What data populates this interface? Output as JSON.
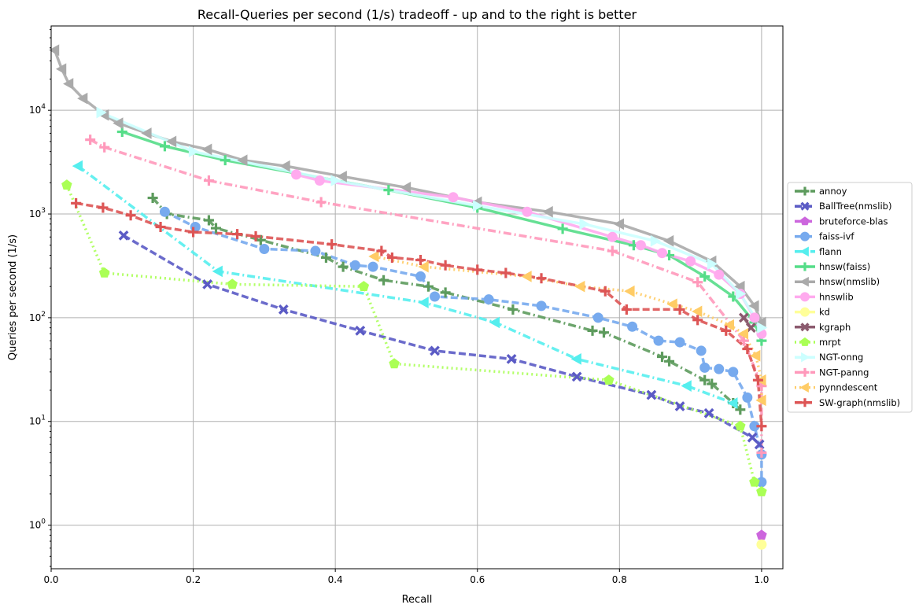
{
  "chart_data": {
    "type": "line",
    "title": "Recall-Queries per second (1/s) tradeoff - up and to the right is better",
    "xlabel": "Recall",
    "ylabel": "Queries per second (1/s)",
    "xlim": [
      0,
      1.03
    ],
    "ylim": [
      0.38,
      65000
    ],
    "x_scale": "linear",
    "y_scale": "log",
    "grid": true,
    "legend_position": "right-outside",
    "x_ticks": [
      {
        "value": 0.0,
        "label": "0.0"
      },
      {
        "value": 0.2,
        "label": "0.2"
      },
      {
        "value": 0.4,
        "label": "0.4"
      },
      {
        "value": 0.6,
        "label": "0.6"
      },
      {
        "value": 0.8,
        "label": "0.8"
      },
      {
        "value": 1.0,
        "label": "1.0"
      }
    ],
    "y_ticks": [
      {
        "value": 1,
        "base": "10",
        "exp": "0"
      },
      {
        "value": 10,
        "base": "10",
        "exp": "1"
      },
      {
        "value": 100,
        "base": "10",
        "exp": "2"
      },
      {
        "value": 1000,
        "base": "10",
        "exp": "3"
      },
      {
        "value": 10000,
        "base": "10",
        "exp": "4"
      }
    ],
    "series": [
      {
        "name": "annoy",
        "color": "#5d9b5d",
        "dash": "dashdot",
        "marker": "plus",
        "x": [
          0.143,
          0.163,
          0.222,
          0.232,
          0.295,
          0.387,
          0.411,
          0.468,
          0.531,
          0.555,
          0.65,
          0.762,
          0.778,
          0.86,
          0.87,
          0.92,
          0.93,
          0.96,
          0.97
        ],
        "y": [
          1430,
          1000,
          870,
          730,
          560,
          380,
          310,
          230,
          200,
          175,
          120,
          75,
          72,
          42,
          38,
          25,
          23,
          15,
          13
        ]
      },
      {
        "name": "BallTree(nmslib)",
        "color": "#5b5bc5",
        "dash": "dashed",
        "marker": "x",
        "x": [
          0.102,
          0.22,
          0.327,
          0.435,
          0.54,
          0.648,
          0.74,
          0.845,
          0.885,
          0.926,
          0.987,
          0.997
        ],
        "y": [
          620,
          210,
          120,
          75,
          48,
          40,
          27,
          18,
          14,
          12,
          7,
          6
        ]
      },
      {
        "name": "bruteforce-blas",
        "color": "#cc66dd",
        "dash": "dashed",
        "marker": "pentagon",
        "x": [
          1.0
        ],
        "y": [
          0.8
        ]
      },
      {
        "name": "faiss-ivf",
        "color": "#77aaee",
        "dash": "dashed",
        "marker": "circle",
        "x": [
          0.16,
          0.203,
          0.3,
          0.372,
          0.428,
          0.453,
          0.52,
          0.54,
          0.616,
          0.69,
          0.77,
          0.818,
          0.855,
          0.885,
          0.915,
          0.92,
          0.94,
          0.96,
          0.98,
          0.99,
          1.0,
          1.0
        ],
        "y": [
          1050,
          750,
          460,
          440,
          320,
          310,
          250,
          160,
          150,
          130,
          100,
          82,
          60,
          58,
          48,
          33,
          32,
          30,
          17,
          9,
          4.8,
          2.6
        ]
      },
      {
        "name": "flann",
        "color": "#55eeee",
        "dash": "dashdot",
        "marker": "triangle-left",
        "x": [
          0.038,
          0.235,
          0.525,
          0.625,
          0.74,
          0.895,
          0.96
        ],
        "y": [
          2900,
          280,
          140,
          90,
          40,
          22,
          15
        ]
      },
      {
        "name": "hnsw(faiss)",
        "color": "#55dd88",
        "dash": "solid",
        "marker": "plus",
        "x": [
          0.1,
          0.16,
          0.245,
          0.475,
          0.6,
          0.72,
          0.82,
          0.87,
          0.92,
          0.96,
          0.99,
          1.0
        ],
        "y": [
          6200,
          4500,
          3300,
          1700,
          1150,
          720,
          500,
          400,
          250,
          160,
          90,
          60
        ]
      },
      {
        "name": "hnsw(nmslib)",
        "color": "#aaaaaa",
        "dash": "solid",
        "marker": "triangle-left",
        "x": [
          0.005,
          0.015,
          0.025,
          0.045,
          0.075,
          0.095,
          0.135,
          0.17,
          0.22,
          0.27,
          0.33,
          0.41,
          0.5,
          0.6,
          0.7,
          0.8,
          0.87,
          0.93,
          0.97,
          0.99,
          1.0
        ],
        "y": [
          38000,
          25000,
          18000,
          13000,
          9000,
          7500,
          6000,
          5000,
          4200,
          3300,
          2900,
          2300,
          1800,
          1300,
          1050,
          800,
          550,
          350,
          200,
          130,
          90
        ]
      },
      {
        "name": "hnswlib",
        "color": "#ffaaee",
        "dash": "solid",
        "marker": "circle",
        "x": [
          0.345,
          0.378,
          0.566,
          0.67,
          0.79,
          0.83,
          0.86,
          0.9,
          0.94,
          0.97,
          0.99,
          1.0
        ],
        "y": [
          2400,
          2100,
          1450,
          1050,
          600,
          500,
          420,
          350,
          260,
          170,
          100,
          70
        ]
      },
      {
        "name": "kd",
        "color": "#ffff99",
        "dash": "solid",
        "marker": "circle",
        "x": [
          1.0
        ],
        "y": [
          0.65
        ]
      },
      {
        "name": "kgraph",
        "color": "#8b5a6e",
        "dash": "solid",
        "marker": "x",
        "x": [
          0.975,
          0.985
        ],
        "y": [
          100,
          80
        ]
      },
      {
        "name": "mrpt",
        "color": "#aaff55",
        "dash": "dotted",
        "marker": "pentagon",
        "x": [
          0.022,
          0.075,
          0.255,
          0.44,
          0.483,
          0.785,
          0.97,
          0.99,
          1.0
        ],
        "y": [
          1900,
          270,
          210,
          200,
          36,
          25,
          9,
          2.6,
          2.1
        ]
      },
      {
        "name": "NGT-onng",
        "color": "#ccffff",
        "dash": "solid",
        "marker": "triangle-right",
        "x": [
          0.07,
          0.2,
          0.4,
          0.6,
          0.75,
          0.85,
          0.93,
          0.97,
          1.0
        ],
        "y": [
          9500,
          4000,
          2100,
          1200,
          800,
          550,
          330,
          170,
          80
        ]
      },
      {
        "name": "NGT-panng",
        "color": "#ff99bb",
        "dash": "dashdot",
        "marker": "plus",
        "x": [
          0.055,
          0.075,
          0.222,
          0.38,
          0.79,
          0.91,
          0.975,
          1.0,
          1.0
        ],
        "y": [
          5200,
          4400,
          2100,
          1300,
          440,
          220,
          60,
          22,
          5
        ]
      },
      {
        "name": "pynndescent",
        "color": "#ffcc66",
        "dash": "dotted",
        "marker": "triangle-left",
        "x": [
          0.455,
          0.525,
          0.67,
          0.745,
          0.815,
          0.875,
          0.91,
          0.955,
          0.975,
          0.992,
          1.0,
          1.0
        ],
        "y": [
          390,
          310,
          250,
          200,
          180,
          135,
          115,
          85,
          70,
          43,
          25,
          16
        ]
      },
      {
        "name": "SW-graph(nmslib)",
        "color": "#dd5555",
        "dash": "dashed",
        "marker": "plus",
        "x": [
          0.035,
          0.073,
          0.112,
          0.154,
          0.2,
          0.262,
          0.288,
          0.395,
          0.465,
          0.48,
          0.52,
          0.555,
          0.6,
          0.64,
          0.69,
          0.78,
          0.81,
          0.885,
          0.91,
          0.95,
          0.98,
          0.995,
          1.0
        ],
        "y": [
          1270,
          1150,
          970,
          750,
          670,
          640,
          610,
          510,
          440,
          380,
          360,
          320,
          290,
          270,
          240,
          180,
          120,
          120,
          95,
          75,
          50,
          25,
          9
        ]
      }
    ]
  }
}
